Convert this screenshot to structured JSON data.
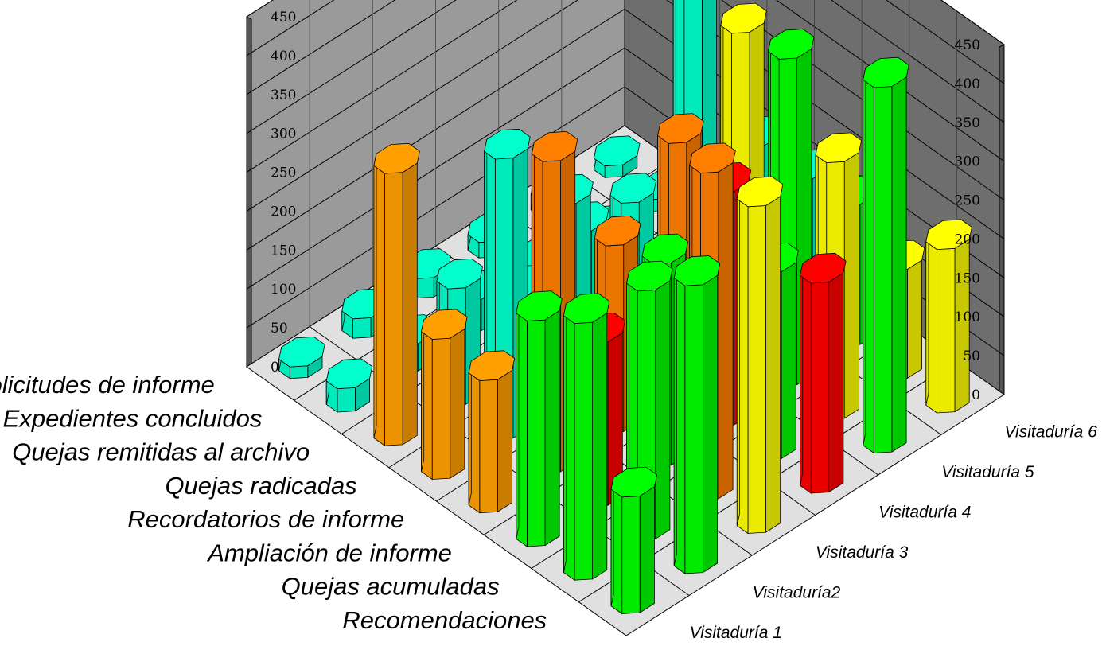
{
  "chart_data": {
    "type": "bar3d",
    "categories": [
      "Solicitudes de informe",
      "Expedientes concluidos",
      "Quejas remitidas al archivo",
      "Quejas radicadas",
      "Recordatorios de informe",
      "Ampliación de informe",
      "Quejas acumuladas",
      "Recomendaciones"
    ],
    "series": [
      {
        "name": "Visitaduría 1",
        "values": [
          150,
          330,
          290,
          170,
          180,
          350,
          30,
          15
        ]
      },
      {
        "name": "Visitaduría2",
        "values": [
          370,
          320,
          210,
          400,
          360,
          150,
          35,
          25
        ]
      },
      {
        "name": "Visitaduría 3",
        "values": [
          420,
          420,
          260,
          240,
          250,
          90,
          40,
          25
        ]
      },
      {
        "name": "Visitaduría 4",
        "values": [
          270,
          240,
          300,
          320,
          200,
          120,
          30,
          20
        ]
      },
      {
        "name": "Visitaduría 5",
        "values": [
          470,
          330,
          420,
          410,
          410,
          20,
          20,
          20
        ]
      },
      {
        "name": "Visitaduría 6",
        "values": [
          210,
          140,
          180,
          170,
          170,
          15,
          15,
          15
        ]
      }
    ],
    "bar_colors": [
      [
        "#00FF00",
        "#00FF00",
        "#00FF00",
        "#FFA000",
        "#FFA000",
        "#FFA000",
        "#00FFCC",
        "#00FFCC"
      ],
      [
        "#00FF00",
        "#00FF00",
        "#FF0000",
        "#FF7F00",
        "#00FFCC",
        "#00FFCC",
        "#00FFCC",
        "#00FFCC"
      ],
      [
        "#FFFF00",
        "#FF7F00",
        "#00FF00",
        "#FF7F00",
        "#00FFCC",
        "#00FFCC",
        "#00FFCC",
        "#00FFCC"
      ],
      [
        "#FF0000",
        "#00FF00",
        "#FF0000",
        "#FF7F00",
        "#00FFCC",
        "#00FFCC",
        "#00FFCC",
        "#00FFCC"
      ],
      [
        "#00FF00",
        "#FFFF00",
        "#00FF00",
        "#FFFF00",
        "#00FFCC",
        "#00FFCC",
        "#00FFCC",
        "#00FFCC"
      ],
      [
        "#FFFF00",
        "#FFFF00",
        "#00FF00",
        "#00FFCC",
        "#00FFCC",
        "#00FFCC",
        "#00FFCC",
        "#00FFCC"
      ]
    ],
    "zlim": [
      0,
      450
    ],
    "z_ticks": [
      "0",
      "50",
      "100",
      "150",
      "200",
      "250",
      "300",
      "350",
      "400",
      "450"
    ],
    "grid": true,
    "wall_color": "#808080",
    "floor_color": "#E0E0E0"
  }
}
